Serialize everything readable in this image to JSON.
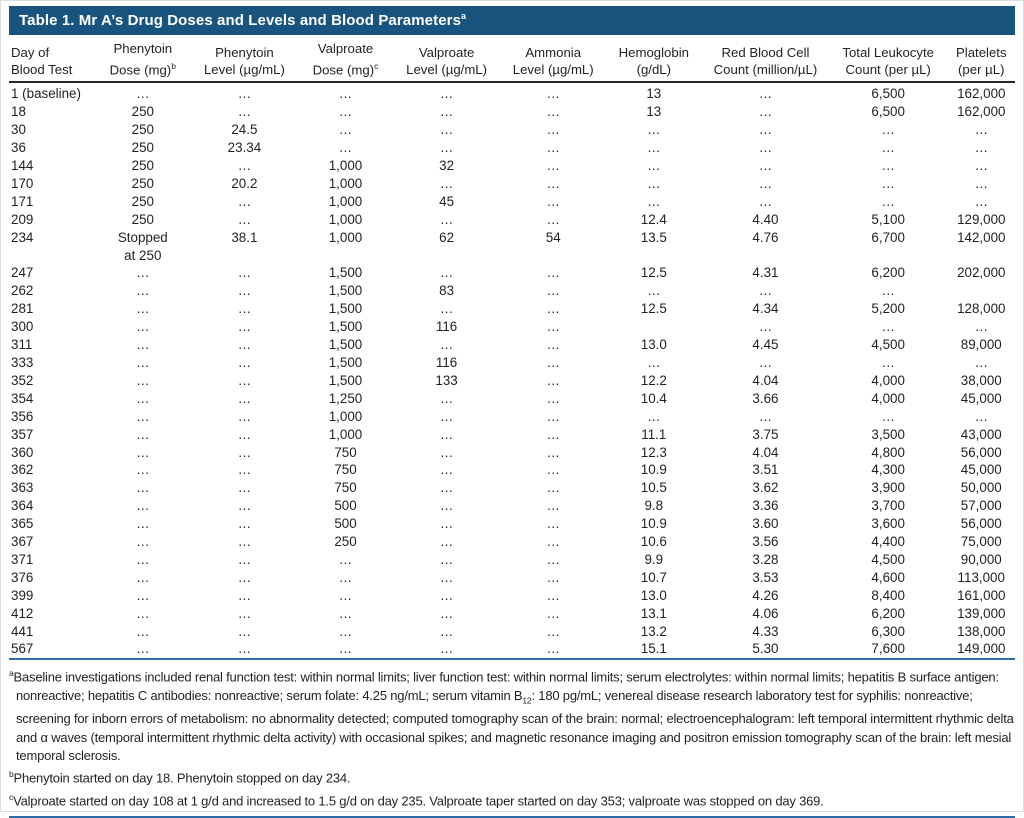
{
  "title": {
    "text": "Table 1. Mr A’s Drug Doses and Levels and Blood Parameters",
    "superscript": "a"
  },
  "colors": {
    "title_bar_background": "#19547f",
    "title_text": "#ffffff",
    "rule_blue": "#2e6ca5",
    "body_text": "#231f20"
  },
  "table": {
    "columns": [
      {
        "id": "day",
        "line1": "Day of",
        "line2": "Blood Test",
        "sup": ""
      },
      {
        "id": "phenytoin-dose",
        "line1": "Phenytoin",
        "line2": "Dose (mg)",
        "sup": "b"
      },
      {
        "id": "phenytoin-level",
        "line1": "Phenytoin",
        "line2": "Level (µg/mL)",
        "sup": ""
      },
      {
        "id": "valproate-dose",
        "line1": "Valproate",
        "line2": "Dose (mg)",
        "sup": "c"
      },
      {
        "id": "valproate-level",
        "line1": "Valproate",
        "line2": "Level (µg/mL)",
        "sup": ""
      },
      {
        "id": "ammonia-level",
        "line1": "Ammonia",
        "line2": "Level (µg/mL)",
        "sup": ""
      },
      {
        "id": "hemoglobin",
        "line1": "Hemoglobin",
        "line2": "(g/dL)",
        "sup": ""
      },
      {
        "id": "rbc-count",
        "line1": "Red Blood Cell",
        "line2": "Count (million/µL)",
        "sup": ""
      },
      {
        "id": "leukocyte-count",
        "line1": "Total Leukocyte",
        "line2": "Count (per µL)",
        "sup": ""
      },
      {
        "id": "platelets",
        "line1": "Platelets",
        "line2": "(per µL)",
        "sup": ""
      }
    ],
    "rows": [
      {
        "cells": [
          "1 (baseline)",
          "…",
          "…",
          "…",
          "…",
          "…",
          "13",
          "…",
          "6,500",
          "162,000"
        ]
      },
      {
        "cells": [
          "18",
          "250",
          "…",
          "…",
          "…",
          "…",
          "13",
          "…",
          "6,500",
          "162,000"
        ]
      },
      {
        "cells": [
          "30",
          "250",
          "24.5",
          "…",
          "…",
          "…",
          "…",
          "…",
          "…",
          "…"
        ]
      },
      {
        "cells": [
          "36",
          "250",
          "23.34",
          "…",
          "…",
          "…",
          "…",
          "…",
          "…",
          "…"
        ]
      },
      {
        "cells": [
          "144",
          "250",
          "…",
          "1,000",
          "32",
          "…",
          "…",
          "…",
          "…",
          "…"
        ]
      },
      {
        "cells": [
          "170",
          "250",
          "20.2",
          "1,000",
          "…",
          "…",
          "…",
          "…",
          "…",
          "…"
        ]
      },
      {
        "cells": [
          "171",
          "250",
          "…",
          "1,000",
          "45",
          "…",
          "…",
          "…",
          "…",
          "…"
        ]
      },
      {
        "cells": [
          "209",
          "250",
          "…",
          "1,000",
          "…",
          "…",
          "12.4",
          "4.40",
          "5,100",
          "129,000"
        ]
      },
      {
        "cells": [
          "234",
          "Stopped\nat 250",
          "38.1",
          "1,000",
          "62",
          "54",
          "13.5",
          "4.76",
          "6,700",
          "142,000"
        ]
      },
      {
        "cells": [
          "247",
          "…",
          "…",
          "1,500",
          "…",
          "…",
          "12.5",
          "4.31",
          "6,200",
          "202,000"
        ]
      },
      {
        "cells": [
          "262",
          "…",
          "…",
          "1,500",
          "83",
          "…",
          "…",
          "…",
          "…",
          ""
        ]
      },
      {
        "cells": [
          "281",
          "…",
          "…",
          "1,500",
          "…",
          "…",
          "12.5",
          "4.34",
          "5,200",
          "128,000"
        ]
      },
      {
        "cells": [
          "300",
          "…",
          "…",
          "1,500",
          "116",
          "…",
          "",
          "…",
          "…",
          "…"
        ]
      },
      {
        "cells": [
          "311",
          "…",
          "…",
          "1,500",
          "…",
          "…",
          "13.0",
          "4.45",
          "4,500",
          "89,000"
        ]
      },
      {
        "cells": [
          "333",
          "…",
          "…",
          "1,500",
          "116",
          "…",
          "…",
          "…",
          "…",
          "…"
        ]
      },
      {
        "cells": [
          "352",
          "…",
          "…",
          "1,500",
          "133",
          "…",
          "12.2",
          "4.04",
          "4,000",
          "38,000"
        ]
      },
      {
        "cells": [
          "354",
          "…",
          "…",
          "1,250",
          "…",
          "…",
          "10.4",
          "3.66",
          "4,000",
          "45,000"
        ]
      },
      {
        "cells": [
          "356",
          "…",
          "…",
          "1,000",
          "…",
          "…",
          "…",
          "…",
          "…",
          "…"
        ]
      },
      {
        "cells": [
          "357",
          "…",
          "…",
          "1,000",
          "…",
          "…",
          "11.1",
          "3.75",
          "3,500",
          "43,000"
        ]
      },
      {
        "cells": [
          "360",
          "…",
          "…",
          "750",
          "…",
          "…",
          "12.3",
          "4.04",
          "4,800",
          "56,000"
        ]
      },
      {
        "cells": [
          "362",
          "…",
          "…",
          "750",
          "…",
          "…",
          "10.9",
          "3.51",
          "4,300",
          "45,000"
        ]
      },
      {
        "cells": [
          "363",
          "…",
          "…",
          "750",
          "…",
          "…",
          "10.5",
          "3.62",
          "3,900",
          "50,000"
        ]
      },
      {
        "cells": [
          "364",
          "…",
          "…",
          "500",
          "…",
          "…",
          "9.8",
          "3.36",
          "3,700",
          "57,000"
        ]
      },
      {
        "cells": [
          "365",
          "…",
          "…",
          "500",
          "…",
          "…",
          "10.9",
          "3.60",
          "3,600",
          "56,000"
        ]
      },
      {
        "cells": [
          "367",
          "…",
          "…",
          "250",
          "…",
          "…",
          "10.6",
          "3.56",
          "4,400",
          "75,000"
        ]
      },
      {
        "cells": [
          "371",
          "…",
          "…",
          "…",
          "…",
          "…",
          "9.9",
          "3.28",
          "4,500",
          "90,000"
        ]
      },
      {
        "cells": [
          "376",
          "…",
          "…",
          "…",
          "…",
          "…",
          "10.7",
          "3.53",
          "4,600",
          "113,000"
        ]
      },
      {
        "cells": [
          "399",
          "…",
          "…",
          "…",
          "…",
          "…",
          "13.0",
          "4.26",
          "8,400",
          "161,000"
        ]
      },
      {
        "cells": [
          "412",
          "…",
          "…",
          "…",
          "…",
          "…",
          "13.1",
          "4.06",
          "6,200",
          "139,000"
        ]
      },
      {
        "cells": [
          "441",
          "…",
          "…",
          "…",
          "…",
          "…",
          "13.2",
          "4.33",
          "6,300",
          "138,000"
        ]
      },
      {
        "cells": [
          "567",
          "…",
          "…",
          "…",
          "…",
          "…",
          "15.1",
          "5.30",
          "7,600",
          "149,000"
        ]
      }
    ]
  },
  "footnotes": {
    "a": {
      "sup": "a",
      "text_pre": "Baseline investigations included renal function test: within normal limits; liver function test: within normal limits; serum electrolytes: within normal limits; hepatitis B surface antigen: nonreactive; hepatitis C antibodies: nonreactive; serum folate: 4.25 ng/mL; serum vitamin B",
      "sub": "12",
      "text_post": ": 180 pg/mL; venereal disease research laboratory test for syphilis: nonreactive; screening for inborn errors of metabolism: no abnormality detected; computed tomography scan of the brain: normal; electroencephalogram: left temporal intermittent rhythmic delta and α waves (temporal intermittent rhythmic delta activity) with occasional spikes; and magnetic resonance imaging and positron emission tomography scan of the brain: left mesial temporal sclerosis."
    },
    "b": {
      "sup": "b",
      "text": "Phenytoin started on day 18. Phenytoin stopped on day 234."
    },
    "c": {
      "sup": "c",
      "text": "Valproate started on day 108 at 1 g/d and increased to 1.5 g/d on day 235. Valproate taper started on day 353; valproate was stopped on day 369."
    }
  }
}
